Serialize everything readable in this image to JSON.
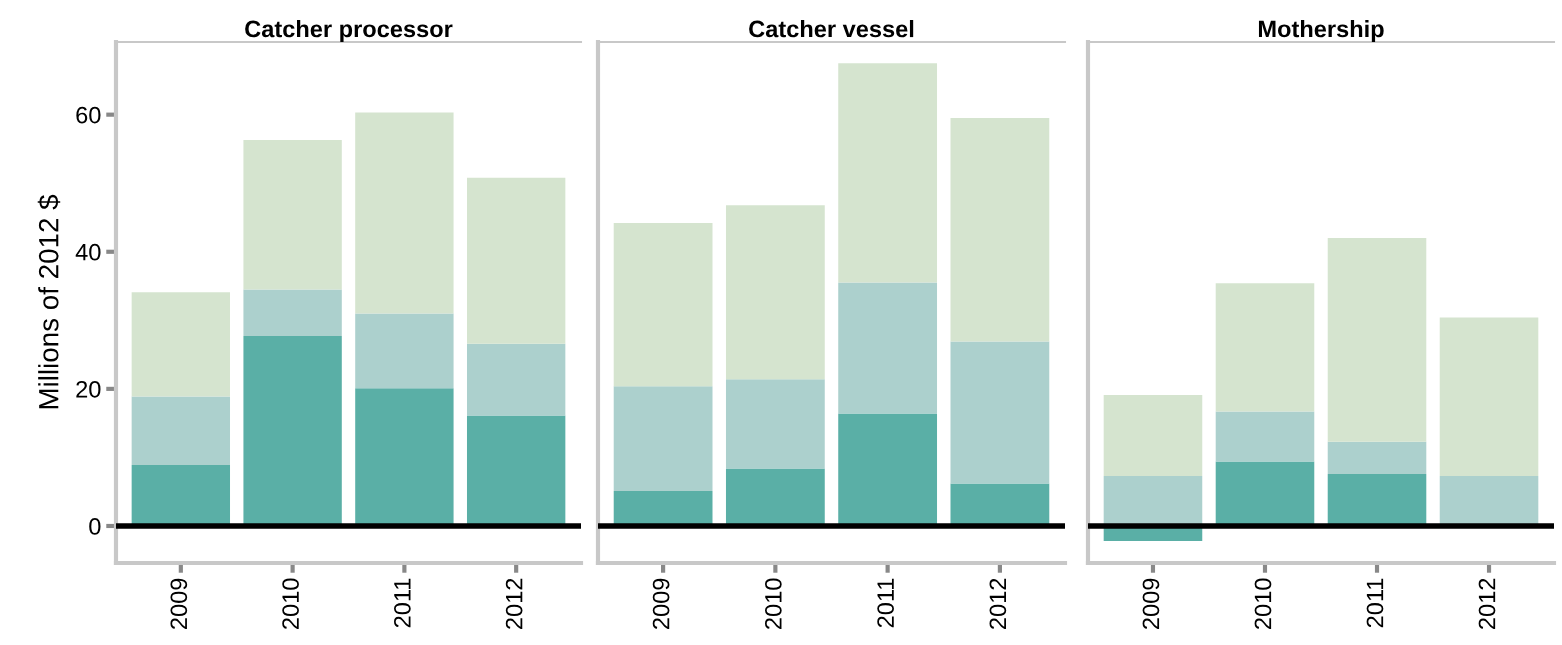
{
  "chart_data": [
    {
      "type": "bar",
      "title": "Catcher processor",
      "ylabel": "Millions of 2012 $",
      "categories": [
        "2009",
        "2010",
        "2011",
        "2012"
      ],
      "stacked": true,
      "ylim": [
        -5.4,
        70.6
      ],
      "yticks": [
        0,
        20,
        40,
        60
      ],
      "grid": false,
      "ref_lines": [
        {
          "axis": "y",
          "value": 0,
          "color": "#000000"
        }
      ],
      "series": [
        {
          "color": "#5aafa6",
          "values": [
            8.9,
            27.7,
            20.1,
            16.1
          ]
        },
        {
          "color": "#acd0cd",
          "values": [
            10.0,
            6.8,
            10.9,
            10.5
          ]
        },
        {
          "color": "#d5e4cf",
          "values": [
            15.2,
            21.8,
            29.3,
            24.2
          ]
        }
      ]
    },
    {
      "type": "bar",
      "title": "Catcher vessel",
      "categories": [
        "2009",
        "2010",
        "2011",
        "2012"
      ],
      "stacked": true,
      "ylim": [
        -5.4,
        70.6
      ],
      "yticks": [
        0,
        20,
        40,
        60
      ],
      "tick_labels": "x",
      "grid": false,
      "ref_lines": [
        {
          "axis": "y",
          "value": 0,
          "color": "#000000"
        }
      ],
      "series": [
        {
          "color": "#5aafa6",
          "values": [
            5.1,
            8.4,
            16.4,
            6.2
          ]
        },
        {
          "color": "#acd0cd",
          "values": [
            15.3,
            13.0,
            19.1,
            20.7
          ]
        },
        {
          "color": "#d5e4cf",
          "values": [
            23.8,
            25.4,
            32.0,
            32.6
          ]
        }
      ]
    },
    {
      "type": "bar",
      "title": "Mothership",
      "categories": [
        "2009",
        "2010",
        "2011",
        "2012"
      ],
      "stacked": true,
      "ylim": [
        -5.4,
        70.6
      ],
      "yticks": [
        0,
        20,
        40,
        60
      ],
      "tick_labels": "x",
      "grid": false,
      "ref_lines": [
        {
          "axis": "y",
          "value": 0,
          "color": "#000000"
        }
      ],
      "series": [
        {
          "color": "#5aafa6",
          "values": [
            -2.2,
            9.4,
            7.6,
            0
          ]
        },
        {
          "color": "#acd0cd",
          "values": [
            7.3,
            7.3,
            4.7,
            7.3
          ]
        },
        {
          "color": "#d5e4cf",
          "values": [
            11.8,
            18.7,
            29.7,
            23.1
          ]
        }
      ]
    }
  ]
}
